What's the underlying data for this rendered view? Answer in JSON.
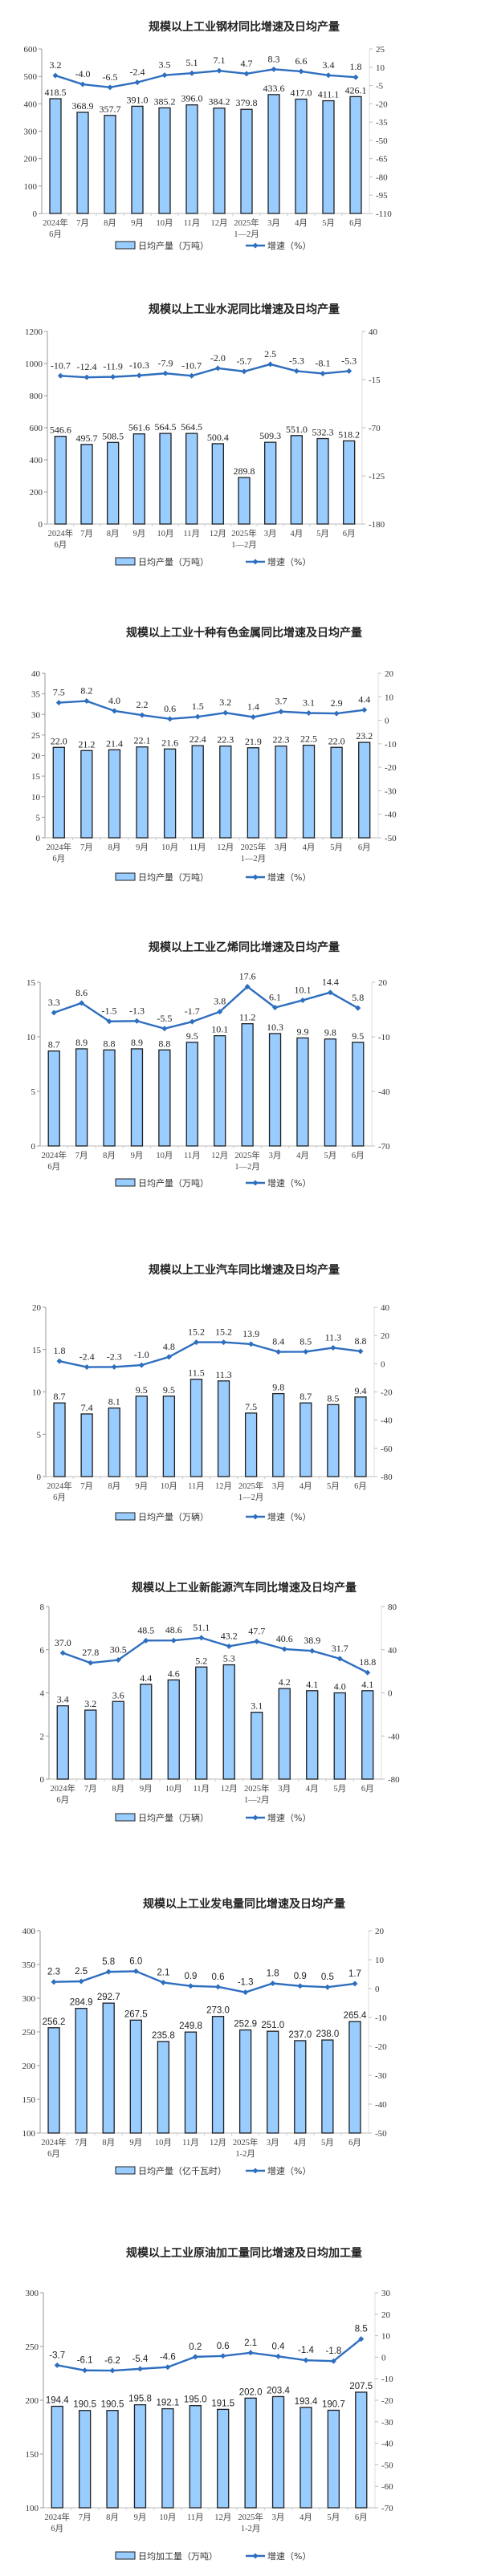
{
  "colors": {
    "bar_fill": "#99CCFF",
    "bar_stroke": "#1f1f1f",
    "line": "#2E6EBF"
  },
  "chart_data": [
    {
      "type": "bar+line",
      "title": "规模以上工业钢材同比增速及日均产量",
      "categories": [
        [
          "2024年",
          "6月"
        ],
        [
          "7月"
        ],
        [
          "8月"
        ],
        [
          "9月"
        ],
        [
          "10月"
        ],
        [
          "11月"
        ],
        [
          "12月"
        ],
        [
          "2025年",
          "1—2月"
        ],
        [
          "3月"
        ],
        [
          "4月"
        ],
        [
          "5月"
        ],
        [
          "6月"
        ]
      ],
      "ylim": [
        0,
        600
      ],
      "yticks": [
        0,
        100,
        200,
        300,
        400,
        500,
        600
      ],
      "y2lim": [
        -110,
        25
      ],
      "y2ticks": [
        -110,
        -95,
        -80,
        -65,
        -50,
        -35,
        -20,
        -5,
        10,
        25
      ],
      "series": [
        {
          "name": "日均产量（万吨）",
          "type": "bar",
          "axis": "left",
          "values": [
            418.5,
            368.9,
            357.7,
            391.0,
            385.2,
            396.0,
            384.2,
            379.8,
            433.6,
            417.0,
            411.1,
            426.1
          ]
        },
        {
          "name": "增速（%）",
          "type": "line",
          "axis": "right",
          "values": [
            3.2,
            -4.0,
            -6.5,
            -2.4,
            3.5,
            5.1,
            7.1,
            4.7,
            8.3,
            6.6,
            3.4,
            1.8
          ]
        }
      ]
    },
    {
      "type": "bar+line",
      "title": "规模以上工业水泥同比增速及日均产量",
      "categories": [
        [
          "2024年",
          "6月"
        ],
        [
          "7月"
        ],
        [
          "8月"
        ],
        [
          "9月"
        ],
        [
          "10月"
        ],
        [
          "11月"
        ],
        [
          "12月"
        ],
        [
          "2025年",
          "1—2月"
        ],
        [
          "3月"
        ],
        [
          "4月"
        ],
        [
          "5月"
        ],
        [
          "6月"
        ]
      ],
      "ylim": [
        0,
        1200
      ],
      "yticks": [
        0,
        200,
        400,
        600,
        800,
        1000,
        1200
      ],
      "y2lim": [
        -180,
        40
      ],
      "y2ticks": [
        -180,
        -125,
        -70,
        -15,
        40
      ],
      "series": [
        {
          "name": "日均产量（万吨）",
          "type": "bar",
          "axis": "left",
          "values": [
            546.6,
            495.7,
            508.5,
            561.6,
            564.5,
            564.5,
            500.4,
            289.8,
            509.3,
            551.0,
            532.3,
            518.2
          ]
        },
        {
          "name": "增速（%）",
          "type": "line",
          "axis": "right",
          "values": [
            -10.7,
            -12.4,
            -11.9,
            -10.3,
            -7.9,
            -10.7,
            -2.0,
            -5.7,
            2.5,
            -5.3,
            -8.1,
            -5.3
          ]
        }
      ]
    },
    {
      "type": "bar+line",
      "title": "规模以上工业十种有色金属同比增速及日均产量",
      "categories": [
        [
          "2024年",
          "6月"
        ],
        [
          "7月"
        ],
        [
          "8月"
        ],
        [
          "9月"
        ],
        [
          "10月"
        ],
        [
          "11月"
        ],
        [
          "12月"
        ],
        [
          "2025年",
          "1—2月"
        ],
        [
          "3月"
        ],
        [
          "4月"
        ],
        [
          "5月"
        ],
        [
          "6月"
        ]
      ],
      "ylim": [
        0,
        40
      ],
      "yticks": [
        0,
        5,
        10,
        15,
        20,
        25,
        30,
        35,
        40
      ],
      "y2lim": [
        -50,
        20
      ],
      "y2ticks": [
        -50,
        -40,
        -30,
        -20,
        -10,
        0,
        10,
        20
      ],
      "series": [
        {
          "name": "日均产量（万吨）",
          "type": "bar",
          "axis": "left",
          "values": [
            22.0,
            21.2,
            21.4,
            22.1,
            21.6,
            22.4,
            22.3,
            21.9,
            22.3,
            22.5,
            22.0,
            23.2
          ]
        },
        {
          "name": "增速（%）",
          "type": "line",
          "axis": "right",
          "values": [
            7.5,
            8.2,
            4.0,
            2.2,
            0.6,
            1.5,
            3.2,
            1.4,
            3.7,
            3.1,
            2.9,
            4.4
          ]
        }
      ]
    },
    {
      "type": "bar+line",
      "title": "规模以上工业乙烯同比增速及日均产量",
      "categories": [
        [
          "2024年",
          "6月"
        ],
        [
          "7月"
        ],
        [
          "8月"
        ],
        [
          "9月"
        ],
        [
          "10月"
        ],
        [
          "11月"
        ],
        [
          "12月"
        ],
        [
          "2025年",
          "1—2月"
        ],
        [
          "3月"
        ],
        [
          "4月"
        ],
        [
          "5月"
        ],
        [
          "6月"
        ]
      ],
      "ylim": [
        0,
        15
      ],
      "yticks": [
        0,
        5,
        10,
        15
      ],
      "y2lim": [
        -70,
        20
      ],
      "y2ticks": [
        -70,
        -40,
        -10,
        20
      ],
      "series": [
        {
          "name": "日均产量（万吨）",
          "type": "bar",
          "axis": "left",
          "values": [
            8.7,
            8.9,
            8.8,
            8.9,
            8.8,
            9.5,
            10.1,
            11.2,
            10.3,
            9.9,
            9.8,
            9.5
          ]
        },
        {
          "name": "增速（%）",
          "type": "line",
          "axis": "right",
          "values": [
            3.3,
            8.6,
            -1.5,
            -1.3,
            -5.5,
            -1.7,
            3.8,
            17.6,
            6.1,
            10.1,
            14.4,
            5.8
          ]
        }
      ]
    },
    {
      "type": "bar+line",
      "title": "规模以上工业汽车同比增速及日均产量",
      "categories": [
        [
          "2024年",
          "6月"
        ],
        [
          "7月"
        ],
        [
          "8月"
        ],
        [
          "9月"
        ],
        [
          "10月"
        ],
        [
          "11月"
        ],
        [
          "12月"
        ],
        [
          "2025年",
          "1—2月"
        ],
        [
          "3月"
        ],
        [
          "4月"
        ],
        [
          "5月"
        ],
        [
          "6月"
        ]
      ],
      "ylim": [
        0,
        20
      ],
      "yticks": [
        0,
        5,
        10,
        15,
        20
      ],
      "y2lim": [
        -80,
        40
      ],
      "y2ticks": [
        -80,
        -60,
        -40,
        -20,
        0,
        20,
        40
      ],
      "series": [
        {
          "name": "日均产量（万辆）",
          "type": "bar",
          "axis": "left",
          "values": [
            8.7,
            7.4,
            8.1,
            9.5,
            9.5,
            11.5,
            11.3,
            7.5,
            9.8,
            8.7,
            8.5,
            9.4
          ]
        },
        {
          "name": "增速（%）",
          "type": "line",
          "axis": "right",
          "values": [
            1.8,
            -2.4,
            -2.3,
            -1.0,
            4.8,
            15.2,
            15.2,
            13.9,
            8.4,
            8.5,
            11.3,
            8.8
          ]
        }
      ]
    },
    {
      "type": "bar+line",
      "title": "规模以上工业新能源汽车同比增速及日均产量",
      "categories": [
        [
          "2024年",
          "6月"
        ],
        [
          "7月"
        ],
        [
          "8月"
        ],
        [
          "9月"
        ],
        [
          "10月"
        ],
        [
          "11月"
        ],
        [
          "12月"
        ],
        [
          "2025年",
          "1—2月"
        ],
        [
          "3月"
        ],
        [
          "4月"
        ],
        [
          "5月"
        ],
        [
          "6月"
        ]
      ],
      "ylim": [
        0,
        8
      ],
      "yticks": [
        0,
        2,
        4,
        6,
        8
      ],
      "y2lim": [
        -80,
        80
      ],
      "y2ticks": [
        -80,
        -40,
        0,
        40,
        80
      ],
      "series": [
        {
          "name": "日均产量（万辆）",
          "type": "bar",
          "axis": "left",
          "values": [
            3.4,
            3.2,
            3.6,
            4.4,
            4.6,
            5.2,
            5.3,
            3.1,
            4.2,
            4.1,
            4.0,
            4.1
          ]
        },
        {
          "name": "增速（%）",
          "type": "line",
          "axis": "right",
          "values": [
            37.0,
            27.8,
            30.5,
            48.5,
            48.6,
            51.1,
            43.2,
            47.7,
            40.6,
            38.9,
            31.7,
            18.8
          ]
        }
      ]
    },
    {
      "type": "bar+line",
      "title": "规模以上工业发电量同比增速及日均产量",
      "categories": [
        [
          "2024年",
          "6月"
        ],
        [
          "7月"
        ],
        [
          "8月"
        ],
        [
          "9月"
        ],
        [
          "10月"
        ],
        [
          "11月"
        ],
        [
          "12月"
        ],
        [
          "2025年",
          "1-2月"
        ],
        [
          "3月"
        ],
        [
          "4月"
        ],
        [
          "5月"
        ],
        [
          "6月"
        ]
      ],
      "ylim": [
        100,
        400
      ],
      "yticks": [
        100,
        150,
        200,
        250,
        300,
        350,
        400
      ],
      "y2lim": [
        -50,
        20
      ],
      "y2ticks": [
        -50,
        -40,
        -30,
        -20,
        -10,
        0,
        10,
        20
      ],
      "series": [
        {
          "name": "日均产量（亿千瓦时）",
          "type": "bar",
          "axis": "left",
          "values": [
            256.2,
            284.9,
            292.7,
            267.5,
            235.8,
            249.8,
            273.0,
            252.9,
            251.0,
            237.0,
            238.0,
            265.4
          ]
        },
        {
          "name": "增速（%）",
          "type": "line",
          "axis": "right",
          "values": [
            2.3,
            2.5,
            5.8,
            6.0,
            2.1,
            0.9,
            0.6,
            -1.3,
            1.8,
            0.9,
            0.5,
            1.7
          ]
        }
      ]
    },
    {
      "type": "bar+line",
      "title": "规模以上工业原油加工量同比增速及日均加工量",
      "categories": [
        [
          "2024年",
          "6月"
        ],
        [
          "7月"
        ],
        [
          "8月"
        ],
        [
          "9月"
        ],
        [
          "10月"
        ],
        [
          "11月"
        ],
        [
          "12月"
        ],
        [
          "2025年",
          "1-2月"
        ],
        [
          "3月"
        ],
        [
          "4月"
        ],
        [
          "5月"
        ],
        [
          "6月"
        ]
      ],
      "ylim": [
        100,
        300
      ],
      "yticks": [
        100,
        150,
        200,
        250,
        300
      ],
      "y2lim": [
        -70,
        30
      ],
      "y2ticks": [
        -70,
        -60,
        -50,
        -40,
        -30,
        -20,
        -10,
        0,
        10,
        20,
        30
      ],
      "series": [
        {
          "name": "日均加工量（万吨）",
          "type": "bar",
          "axis": "left",
          "values": [
            194.4,
            190.5,
            190.5,
            195.8,
            192.1,
            195.0,
            191.5,
            202.0,
            203.4,
            193.4,
            190.7,
            207.5
          ]
        },
        {
          "name": "增速（%）",
          "type": "line",
          "axis": "right",
          "values": [
            -3.7,
            -6.1,
            -6.2,
            -5.4,
            -4.6,
            0.2,
            0.6,
            2.1,
            0.4,
            -1.4,
            -1.8,
            8.5
          ]
        }
      ]
    }
  ]
}
